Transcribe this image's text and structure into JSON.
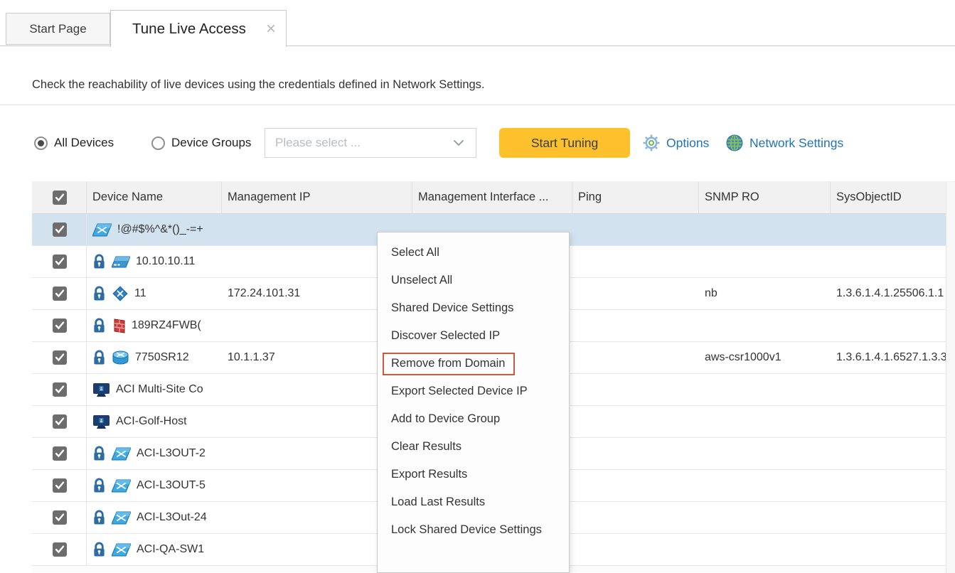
{
  "tabs": {
    "start_page": "Start Page",
    "active_tab": "Tune Live Access",
    "close_icon": "×"
  },
  "description": "Check the reachability of live devices using the credentials defined in Network Settings.",
  "controls": {
    "radio_all_devices": "All Devices",
    "radio_device_groups": "Device Groups",
    "group_select_placeholder": "Please select ...",
    "start_tuning_button": "Start Tuning",
    "options_label": "Options",
    "network_settings_label": "Network Settings"
  },
  "table": {
    "columns": [
      "Device Name",
      "Management IP",
      "Management Interface ...",
      "Ping",
      "SNMP RO",
      "SysObjectID"
    ],
    "rows": [
      {
        "name": "!@#$%^&*()_-=+",
        "icon": "switch",
        "lock": false,
        "ip": "",
        "iface": "",
        "ping": "",
        "snmp_ro": "",
        "sysobjectid": "",
        "checked": true,
        "highlighted": true
      },
      {
        "name": "10.10.10.11",
        "icon": "server",
        "lock": true,
        "ip": "",
        "iface": "",
        "ping": "",
        "snmp_ro": "",
        "sysobjectid": "",
        "checked": true,
        "highlighted": false
      },
      {
        "name": "11",
        "icon": "diamond",
        "lock": true,
        "ip": "172.24.101.31",
        "iface": "",
        "ping": "",
        "snmp_ro": "nb",
        "sysobjectid": "1.3.6.1.4.1.25506.1.1",
        "checked": true,
        "highlighted": false
      },
      {
        "name": "189RZ4FWB(",
        "icon": "firewall",
        "lock": true,
        "ip": "",
        "iface": "",
        "ping": "",
        "snmp_ro": "",
        "sysobjectid": "",
        "checked": true,
        "highlighted": false
      },
      {
        "name": "7750SR12",
        "icon": "router",
        "lock": true,
        "ip": "10.1.1.37",
        "iface": "",
        "ping": "",
        "snmp_ro": "aws-csr1000v1",
        "sysobjectid": "1.3.6.1.4.1.6527.1.3.3",
        "checked": true,
        "highlighted": false
      },
      {
        "name": "ACI Multi-Site Co",
        "icon": "controller",
        "lock": false,
        "ip": "",
        "iface": "",
        "ping": "",
        "snmp_ro": "",
        "sysobjectid": "",
        "checked": true,
        "highlighted": false
      },
      {
        "name": "ACI-Golf-Host",
        "icon": "controller",
        "lock": false,
        "ip": "",
        "iface": "",
        "ping": "",
        "snmp_ro": "",
        "sysobjectid": "",
        "checked": true,
        "highlighted": false
      },
      {
        "name": "ACI-L3OUT-2",
        "icon": "switch",
        "lock": true,
        "ip": "",
        "iface": "",
        "ping": "",
        "snmp_ro": "",
        "sysobjectid": "",
        "checked": true,
        "highlighted": false
      },
      {
        "name": "ACI-L3OUT-5",
        "icon": "switch",
        "lock": true,
        "ip": "",
        "iface": "",
        "ping": "",
        "snmp_ro": "",
        "sysobjectid": "",
        "checked": true,
        "highlighted": false
      },
      {
        "name": "ACI-L3Out-24",
        "icon": "switch",
        "lock": true,
        "ip": "",
        "iface": "",
        "ping": "",
        "snmp_ro": "",
        "sysobjectid": "",
        "checked": true,
        "highlighted": false
      },
      {
        "name": "ACI-QA-SW1",
        "icon": "switch",
        "lock": true,
        "ip": "",
        "iface": "",
        "ping": "",
        "snmp_ro": "",
        "sysobjectid": "",
        "checked": true,
        "highlighted": false
      }
    ]
  },
  "context_menu": {
    "items": [
      {
        "label": "Select All",
        "highlighted": false
      },
      {
        "label": "Unselect All",
        "highlighted": false
      },
      {
        "label": "Shared Device Settings",
        "highlighted": false
      },
      {
        "label": "Discover Selected IP",
        "highlighted": false
      },
      {
        "label": "Remove from Domain",
        "highlighted": true
      },
      {
        "label": "Export Selected Device IP",
        "highlighted": false
      },
      {
        "label": "Add to Device Group",
        "highlighted": false
      },
      {
        "label": "Clear Results",
        "highlighted": false
      },
      {
        "label": "Export Results",
        "highlighted": false
      },
      {
        "label": "Load Last Results",
        "highlighted": false
      },
      {
        "label": "Lock Shared Device Settings",
        "highlighted": false
      }
    ]
  },
  "colors": {
    "accent_yellow": "#fcc12d",
    "link_blue": "#2273b4",
    "row_highlight": "#d2e2ee",
    "menu_highlight_border": "#c75b3b",
    "lock_blue": "#2d6ba3"
  }
}
